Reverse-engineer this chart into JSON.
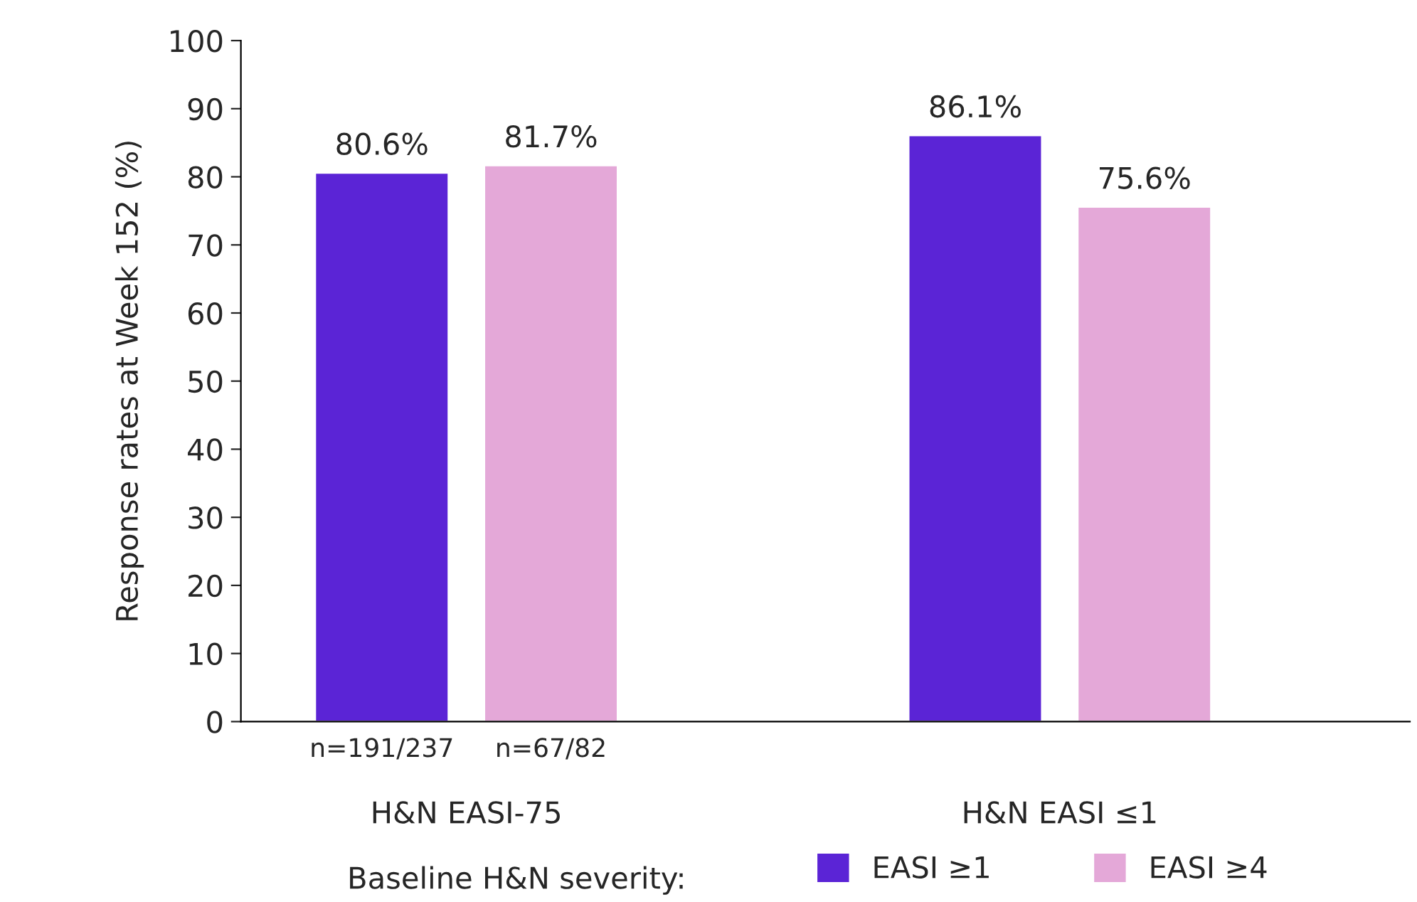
{
  "chart_data": {
    "type": "bar",
    "ylabel": "Response rates at Week 152 (%)",
    "categories": [
      "H&N EASI-75",
      "H&N EASI ≤1"
    ],
    "series": [
      {
        "name": "EASI ≥1",
        "color": "#5b24d6",
        "values": [
          80.6,
          86.1
        ],
        "value_labels": [
          "80.6%",
          "86.1%"
        ]
      },
      {
        "name": "EASI ≥4",
        "color": "#e4a8d8",
        "values": [
          81.7,
          75.6
        ],
        "value_labels": [
          "81.7%",
          "75.6%"
        ]
      }
    ],
    "annotations": [
      "n=191/237",
      "n=67/82"
    ],
    "ylim": [
      0,
      100
    ],
    "yticks": [
      0,
      10,
      20,
      30,
      40,
      50,
      60,
      70,
      80,
      90,
      100
    ],
    "legend": "bottom",
    "legend_title": "Baseline H&N severity:",
    "grid": false
  }
}
